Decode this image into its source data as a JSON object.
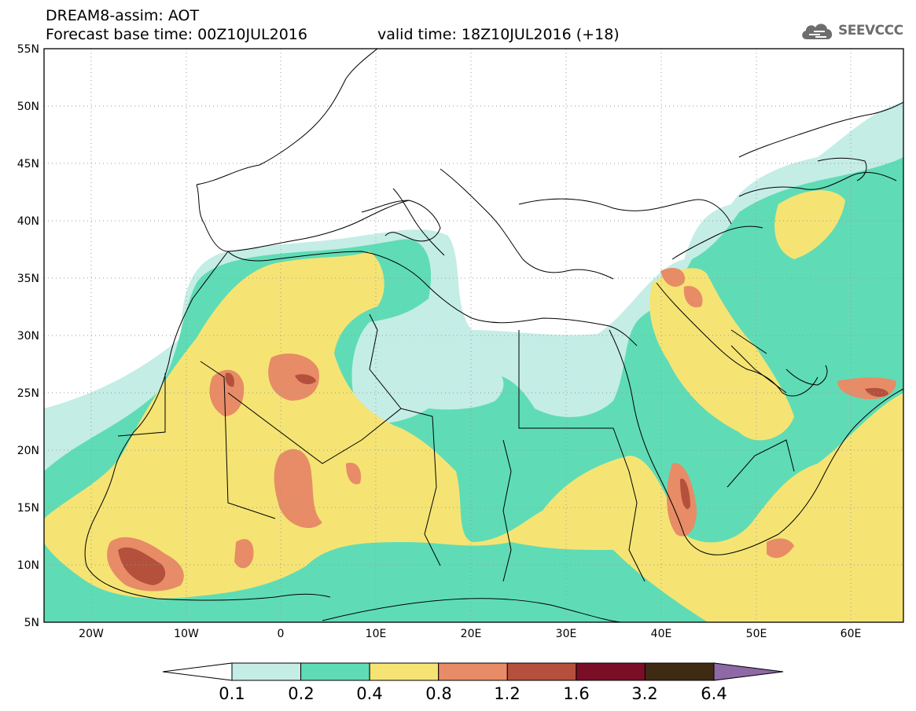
{
  "header": {
    "title": "DREAM8-assim: AOT",
    "base_time": "Forecast base time: 00Z10JUL2016",
    "valid_time": "valid time: 18Z10JUL2016 (+18)"
  },
  "logo": {
    "text": "SEEVCCC",
    "icon": "cloud-icon"
  },
  "axes": {
    "lat_labels": [
      "55N",
      "50N",
      "45N",
      "40N",
      "35N",
      "30N",
      "25N",
      "20N",
      "15N",
      "10N",
      "5N"
    ],
    "lon_labels": [
      "20W",
      "10W",
      "0",
      "10E",
      "20E",
      "30E",
      "40E",
      "50E",
      "60E"
    ]
  },
  "colorbar": {
    "colors": [
      "#c4ede6",
      "#5fdcb5",
      "#f5e474",
      "#e78c67",
      "#b5503c",
      "#7b0e27",
      "#3f2a14"
    ],
    "end_colors": {
      "low": "#ffffff",
      "high": "#8e69a6"
    },
    "labels": [
      "0.1",
      "0.2",
      "0.4",
      "0.8",
      "1.2",
      "1.6",
      "3.2",
      "6.4"
    ]
  }
}
